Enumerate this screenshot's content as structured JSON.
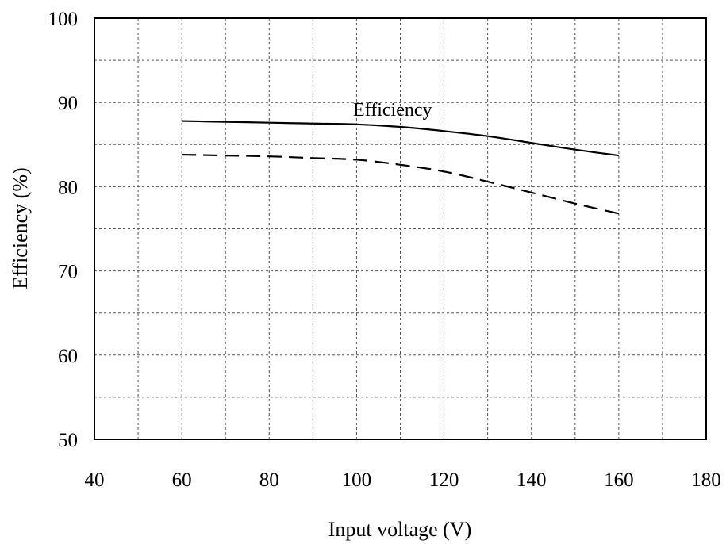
{
  "chart_data": {
    "type": "line",
    "xlabel": "Input voltage (V)",
    "ylabel": "Efficiency (%)",
    "xlim": [
      40,
      180
    ],
    "ylim": [
      50,
      100
    ],
    "x_ticks": [
      "40",
      "60",
      "80",
      "100",
      "120",
      "140",
      "160",
      "180"
    ],
    "y_ticks": [
      "50",
      "60",
      "70",
      "80",
      "90",
      "100"
    ],
    "x_minor_step": 10,
    "y_minor_step": 5,
    "grid": true,
    "grid_style": "dashed",
    "annotations": [
      {
        "text": "Efficiency"
      }
    ],
    "series": [
      {
        "style": "solid",
        "x": [
          60,
          70,
          80,
          90,
          100,
          110,
          120,
          130,
          140,
          150,
          160
        ],
        "y": [
          87.8,
          87.7,
          87.6,
          87.5,
          87.4,
          87.1,
          86.6,
          86.0,
          85.2,
          84.4,
          83.7
        ]
      },
      {
        "style": "dashed",
        "x": [
          60,
          70,
          80,
          90,
          100,
          110,
          120,
          130,
          140,
          150,
          160
        ],
        "y": [
          83.8,
          83.7,
          83.6,
          83.4,
          83.2,
          82.6,
          81.8,
          80.6,
          79.3,
          78.0,
          76.8
        ]
      }
    ]
  }
}
